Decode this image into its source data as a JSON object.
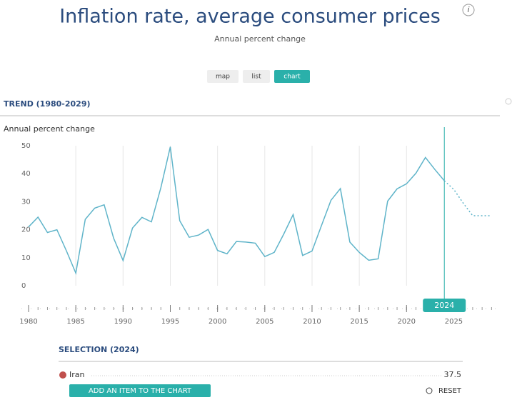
{
  "header": {
    "title": "Inflation rate, average consumer prices",
    "subtitle": "Annual percent change",
    "info": "i"
  },
  "tabs": [
    "map",
    "list",
    "chart"
  ],
  "chart_data": {
    "type": "line",
    "title": "TREND (1980-2029)",
    "y_label": "Annual percent change",
    "x": [
      1980,
      1981,
      1982,
      1983,
      1984,
      1985,
      1986,
      1987,
      1988,
      1989,
      1990,
      1991,
      1992,
      1993,
      1994,
      1995,
      1996,
      1997,
      1998,
      1999,
      2000,
      2001,
      2002,
      2003,
      2004,
      2005,
      2006,
      2007,
      2008,
      2009,
      2010,
      2011,
      2012,
      2013,
      2014,
      2015,
      2016,
      2017,
      2018,
      2019,
      2020,
      2021,
      2022,
      2023,
      2024,
      2025,
      2026,
      2027,
      2028,
      2029
    ],
    "series": [
      {
        "name": "Iran",
        "color": "#5fb4c9",
        "values": [
          21,
          24.5,
          19,
          20,
          12.5,
          4.5,
          23.7,
          27.7,
          28.9,
          17,
          9,
          20.6,
          24.4,
          22.8,
          35,
          49.6,
          23.2,
          17.3,
          18.1,
          20.1,
          12.6,
          11.4,
          15.8,
          15.6,
          15.2,
          10.4,
          11.9,
          18.4,
          25.4,
          10.8,
          12.4,
          21.5,
          30.5,
          34.7,
          15.6,
          11.9,
          9.1,
          9.6,
          30.2,
          34.6,
          36.4,
          40.2,
          45.8,
          41.5,
          37.5,
          34.4,
          29.5,
          25,
          25,
          25
        ]
      }
    ],
    "projection_from": 2024,
    "selected": 2024,
    "xlim": [
      1980,
      2029.5
    ],
    "xticks": [
      1980,
      1985,
      1990,
      1995,
      2000,
      2005,
      2010,
      2015,
      2020,
      2025
    ],
    "ylim": [
      0,
      50
    ],
    "yticks": [
      0,
      10,
      20,
      30,
      40,
      50
    ],
    "grid": true
  },
  "selection": {
    "title": "SELECTION (2024)",
    "add": "ADD AN ITEM TO THE CHART",
    "reset": "RESET"
  }
}
